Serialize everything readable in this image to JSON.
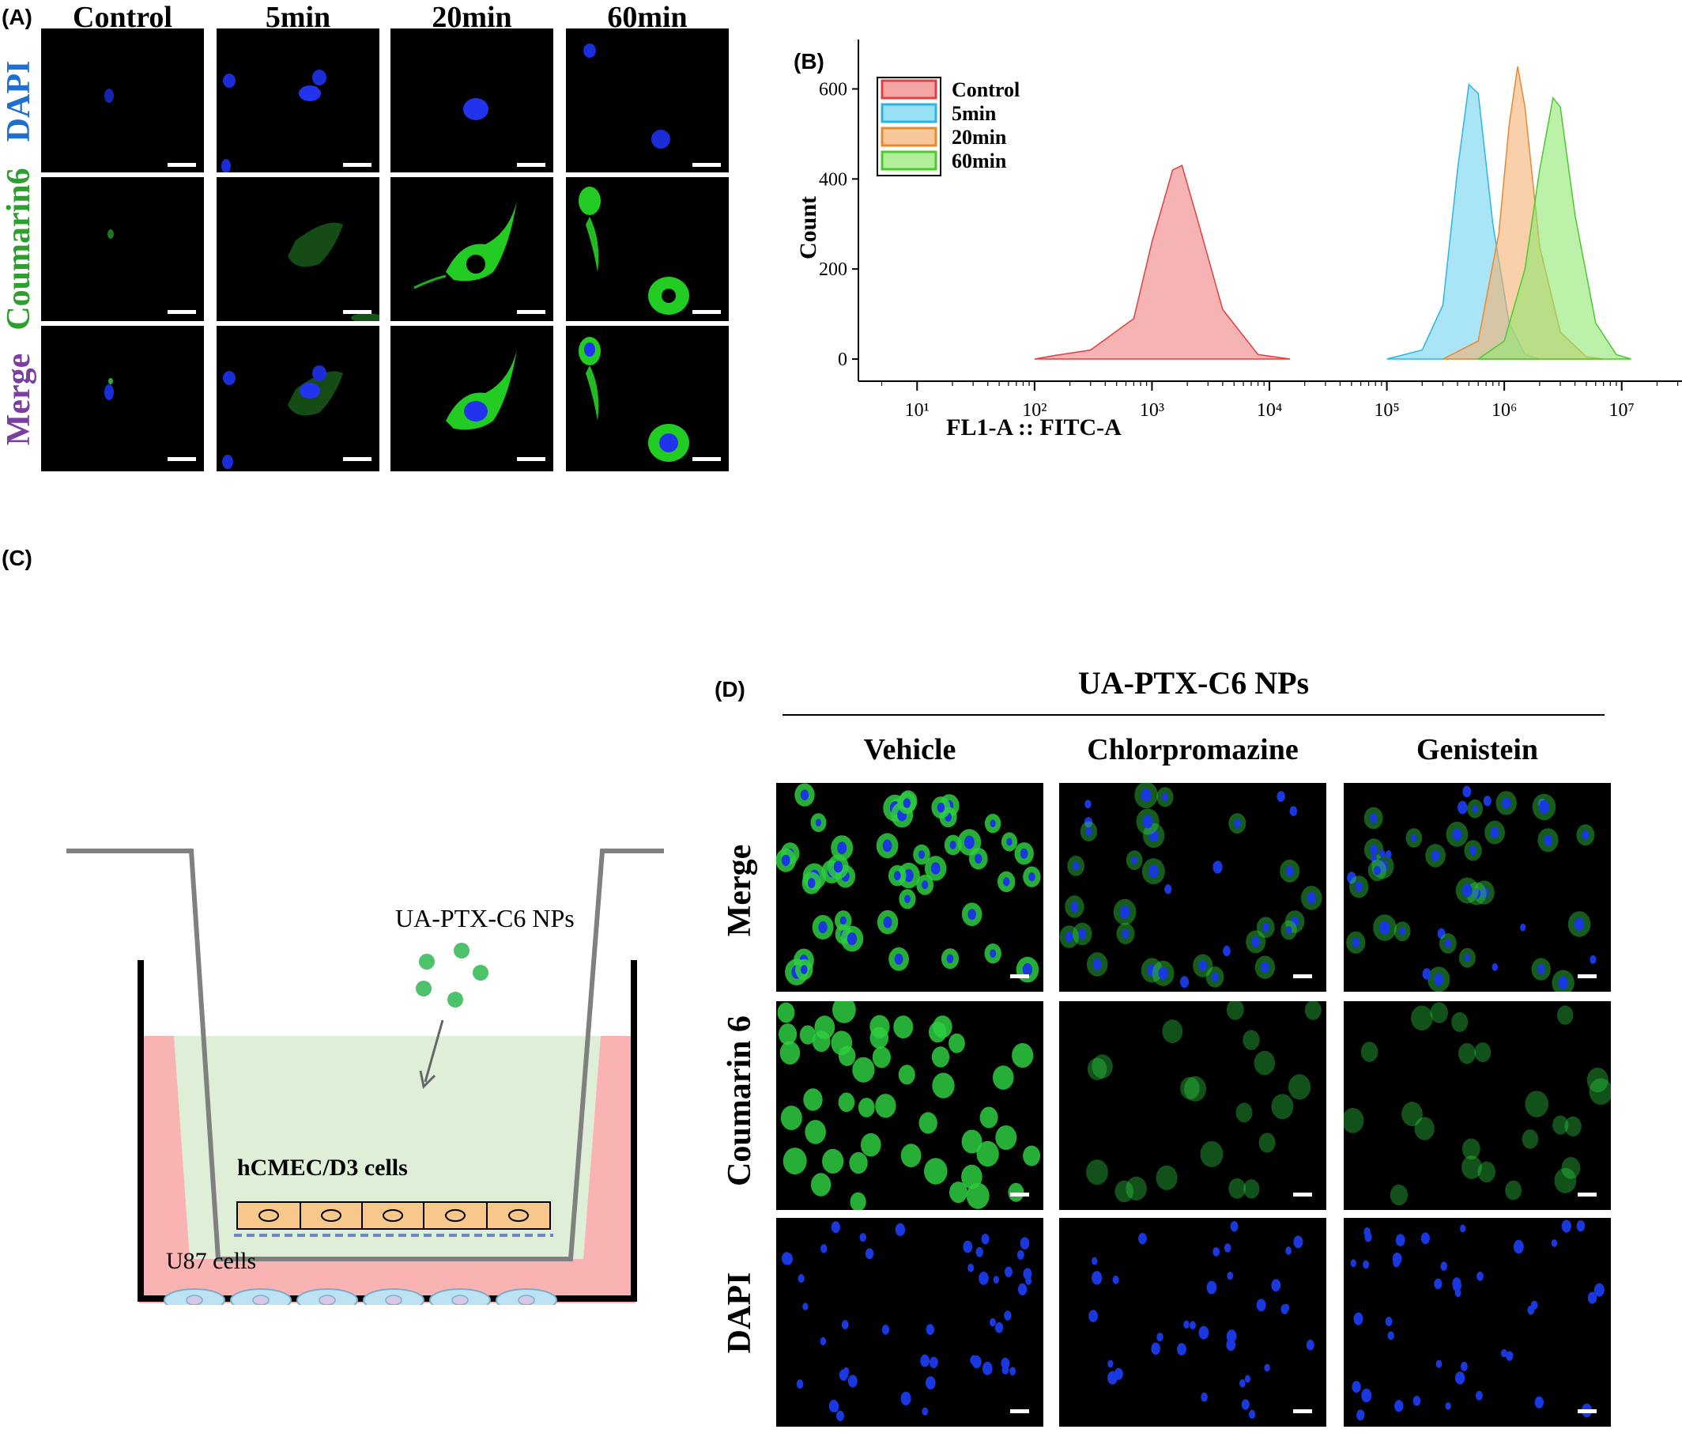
{
  "figure": {
    "panel_labels": {
      "a": "(A)",
      "b": "(B)",
      "c": "(C)",
      "d": "(D)"
    }
  },
  "panel_a": {
    "columns": [
      "Control",
      "5min",
      "20min",
      "60min"
    ],
    "rows": [
      {
        "label": "DAPI",
        "color": "#1f6fd1"
      },
      {
        "label": "Coumarin6",
        "color": "#2e9e2e"
      },
      {
        "label": "Merge",
        "color": "#7b3fa0"
      }
    ]
  },
  "panel_b": {
    "chart_data": {
      "type": "area",
      "xlabel": "FL1-A :: FITC-A",
      "ylabel": "Count",
      "x_scale": "log",
      "x_tick_labels": [
        "10¹",
        "10²",
        "10³",
        "10⁴",
        "10⁵",
        "10⁶",
        "10⁷"
      ],
      "x_tick_values": [
        10,
        100,
        1000,
        10000,
        100000,
        1000000,
        10000000
      ],
      "y_ticks": [
        0,
        200,
        400,
        600
      ],
      "ylim": [
        0,
        650
      ],
      "legend_position": "top-left",
      "series": [
        {
          "name": "Control",
          "color": "#f08080",
          "stroke": "#e04040",
          "points": [
            [
              100,
              0
            ],
            [
              150,
              8
            ],
            [
              300,
              20
            ],
            [
              700,
              90
            ],
            [
              1000,
              260
            ],
            [
              1500,
              420
            ],
            [
              1800,
              430
            ],
            [
              2500,
              300
            ],
            [
              4000,
              110
            ],
            [
              8000,
              10
            ],
            [
              15000,
              0
            ]
          ]
        },
        {
          "name": "5min",
          "color": "#6fd3f0",
          "stroke": "#2bb6e0",
          "points": [
            [
              100000,
              0
            ],
            [
              200000,
              20
            ],
            [
              300000,
              120
            ],
            [
              400000,
              420
            ],
            [
              500000,
              610
            ],
            [
              600000,
              590
            ],
            [
              800000,
              300
            ],
            [
              1100000,
              80
            ],
            [
              1500000,
              10
            ],
            [
              2000000,
              0
            ]
          ]
        },
        {
          "name": "20min",
          "color": "#f5b070",
          "stroke": "#e8892e",
          "points": [
            [
              300000,
              0
            ],
            [
              600000,
              40
            ],
            [
              900000,
              280
            ],
            [
              1100000,
              520
            ],
            [
              1300000,
              650
            ],
            [
              1500000,
              560
            ],
            [
              2000000,
              250
            ],
            [
              3000000,
              60
            ],
            [
              5000000,
              5
            ],
            [
              7000000,
              0
            ]
          ]
        },
        {
          "name": "60min",
          "color": "#90e870",
          "stroke": "#4cc830",
          "points": [
            [
              600000,
              0
            ],
            [
              1000000,
              40
            ],
            [
              1500000,
              200
            ],
            [
              2000000,
              420
            ],
            [
              2600000,
              580
            ],
            [
              3000000,
              560
            ],
            [
              4000000,
              320
            ],
            [
              6000000,
              80
            ],
            [
              9000000,
              10
            ],
            [
              12000000,
              0
            ]
          ]
        }
      ]
    }
  },
  "panel_c": {
    "np_label": "UA-PTX-C6 NPs",
    "insert_cells_label": "hCMEC/D3 cells",
    "bottom_cells_label": "U87 cells"
  },
  "panel_d": {
    "title": "UA-PTX-C6 NPs",
    "columns": [
      "Vehicle",
      "Chlorpromazine",
      "Genistein"
    ],
    "rows": [
      "Merge",
      "Coumarin 6",
      "DAPI"
    ]
  }
}
